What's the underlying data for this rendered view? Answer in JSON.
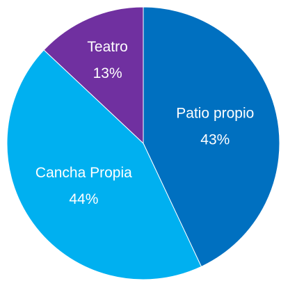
{
  "chart_data": {
    "type": "pie",
    "categories": [
      "Patio propio",
      "Cancha Propia",
      "Teatro"
    ],
    "values": [
      43,
      44,
      13
    ],
    "value_labels": [
      "43%",
      "44%",
      "13%"
    ],
    "colors": [
      "#0070c0",
      "#00b0f0",
      "#7030a0"
    ]
  }
}
